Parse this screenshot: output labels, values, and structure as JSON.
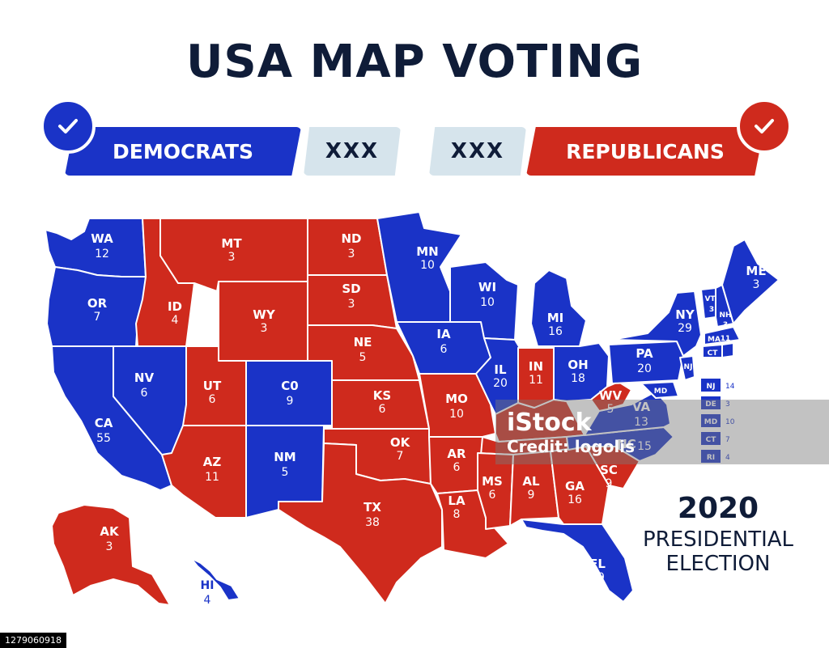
{
  "title": "USA MAP VOTING",
  "legend": {
    "democrats": {
      "label": "DEMOCRATS",
      "tally": "XXX",
      "color": "#1a33c7"
    },
    "republicans": {
      "label": "REPUBLICANS",
      "tally": "XXX",
      "color": "#cf2a1d"
    }
  },
  "states": [
    {
      "abbr": "WA",
      "ev": "12",
      "party": "D"
    },
    {
      "abbr": "OR",
      "ev": "7",
      "party": "D"
    },
    {
      "abbr": "CA",
      "ev": "55",
      "party": "D"
    },
    {
      "abbr": "NV",
      "ev": "6",
      "party": "D"
    },
    {
      "abbr": "ID",
      "ev": "4",
      "party": "R"
    },
    {
      "abbr": "MT",
      "ev": "3",
      "party": "R"
    },
    {
      "abbr": "WY",
      "ev": "3",
      "party": "R"
    },
    {
      "abbr": "UT",
      "ev": "6",
      "party": "R"
    },
    {
      "abbr": "AZ",
      "ev": "11",
      "party": "R"
    },
    {
      "abbr": "C0",
      "ev": "9",
      "party": "D"
    },
    {
      "abbr": "NM",
      "ev": "5",
      "party": "D"
    },
    {
      "abbr": "ND",
      "ev": "3",
      "party": "R"
    },
    {
      "abbr": "SD",
      "ev": "3",
      "party": "R"
    },
    {
      "abbr": "NE",
      "ev": "5",
      "party": "R"
    },
    {
      "abbr": "KS",
      "ev": "6",
      "party": "R"
    },
    {
      "abbr": "OK",
      "ev": "7",
      "party": "R"
    },
    {
      "abbr": "TX",
      "ev": "38",
      "party": "R"
    },
    {
      "abbr": "MN",
      "ev": "10",
      "party": "D"
    },
    {
      "abbr": "IA",
      "ev": "6",
      "party": "D"
    },
    {
      "abbr": "MO",
      "ev": "10",
      "party": "R"
    },
    {
      "abbr": "AR",
      "ev": "6",
      "party": "R"
    },
    {
      "abbr": "LA",
      "ev": "8",
      "party": "R"
    },
    {
      "abbr": "WI",
      "ev": "10",
      "party": "D"
    },
    {
      "abbr": "IL",
      "ev": "20",
      "party": "D"
    },
    {
      "abbr": "MI",
      "ev": "16",
      "party": "D"
    },
    {
      "abbr": "IN",
      "ev": "11",
      "party": "R"
    },
    {
      "abbr": "OH",
      "ev": "18",
      "party": "D"
    },
    {
      "abbr": "MS",
      "ev": "6",
      "party": "R"
    },
    {
      "abbr": "AL",
      "ev": "9",
      "party": "R"
    },
    {
      "abbr": "GA",
      "ev": "16",
      "party": "R"
    },
    {
      "abbr": "FL",
      "ev": "29",
      "party": "D"
    },
    {
      "abbr": "SC",
      "ev": "9",
      "party": "R"
    },
    {
      "abbr": "NC",
      "ev": "15",
      "party": "D"
    },
    {
      "abbr": "VA",
      "ev": "13",
      "party": "D"
    },
    {
      "abbr": "WV",
      "ev": "5",
      "party": "R"
    },
    {
      "abbr": "PA",
      "ev": "20",
      "party": "D"
    },
    {
      "abbr": "NY",
      "ev": "29",
      "party": "D"
    },
    {
      "abbr": "VT",
      "ev": "3",
      "party": "D"
    },
    {
      "abbr": "NH",
      "ev": "3",
      "party": "D"
    },
    {
      "abbr": "ME",
      "ev": "3",
      "party": "D"
    },
    {
      "abbr": "MA",
      "ev": "11",
      "party": "D"
    },
    {
      "abbr": "CT",
      "ev": "",
      "party": "D"
    },
    {
      "abbr": "NJ",
      "ev": "",
      "party": "D"
    },
    {
      "abbr": "MD",
      "ev": "",
      "party": "D"
    },
    {
      "abbr": "AK",
      "ev": "3",
      "party": "R"
    },
    {
      "abbr": "HI",
      "ev": "4",
      "party": "D"
    }
  ],
  "small_states": [
    {
      "abbr": "NJ",
      "ev": "14"
    },
    {
      "abbr": "DE",
      "ev": "3"
    },
    {
      "abbr": "MD",
      "ev": "10"
    },
    {
      "abbr": "CT",
      "ev": "7"
    },
    {
      "abbr": "RI",
      "ev": "4"
    }
  ],
  "election": {
    "year": "2020",
    "line1": "PRESIDENTIAL",
    "line2": "ELECTION"
  },
  "watermark": {
    "brand": "iStock",
    "credit": "Credit: logolis"
  },
  "image_id": "1279060918"
}
